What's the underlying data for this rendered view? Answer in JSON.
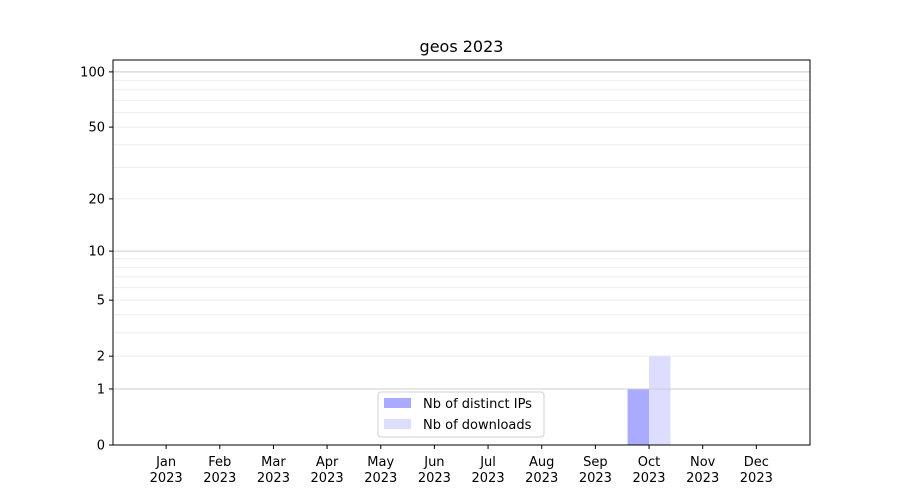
{
  "chart_data": {
    "type": "bar",
    "title": "geos 2023",
    "xlabel": "",
    "ylabel": "",
    "yscale": "log(1+y)",
    "ylim": [
      0,
      116
    ],
    "yticks": [
      0,
      1,
      2,
      5,
      10,
      20,
      50,
      100
    ],
    "grid": true,
    "legend_placement": "lower-center",
    "categories": [
      "Jan\n2023",
      "Feb\n2023",
      "Mar\n2023",
      "Apr\n2023",
      "May\n2023",
      "Jun\n2023",
      "Jul\n2023",
      "Aug\n2023",
      "Sep\n2023",
      "Oct\n2023",
      "Nov\n2023",
      "Dec\n2023"
    ],
    "series": [
      {
        "name": "Nb of distinct IPs",
        "color": "#aaaaff",
        "values": [
          0,
          0,
          0,
          0,
          0,
          0,
          0,
          0,
          0,
          1,
          0,
          0
        ]
      },
      {
        "name": "Nb of downloads",
        "color": "#ddddff",
        "values": [
          0,
          0,
          0,
          0,
          0,
          0,
          0,
          0,
          0,
          2,
          0,
          0
        ]
      }
    ]
  }
}
